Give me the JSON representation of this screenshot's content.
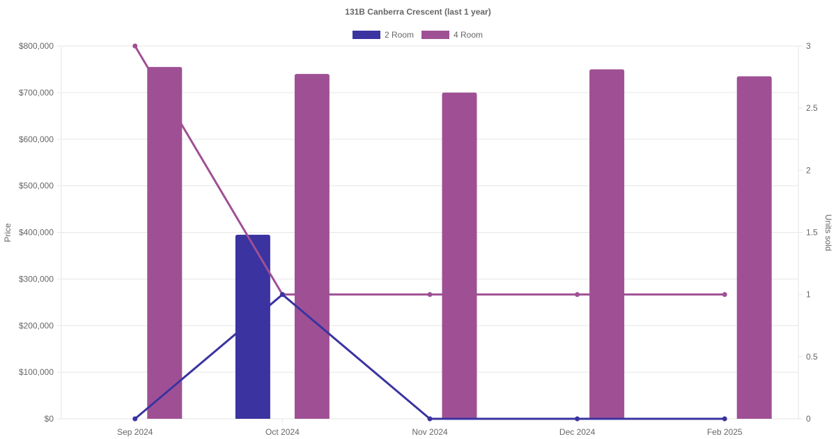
{
  "chart_data": {
    "type": "bar",
    "title": "131B Canberra Crescent (last 1 year)",
    "categories": [
      "Sep 2024",
      "Oct 2024",
      "Nov 2024",
      "Dec 2024",
      "Feb 2025"
    ],
    "ylabel": "Price",
    "y2label": "Units sold",
    "ylim": [
      0,
      800000
    ],
    "y2lim": [
      0,
      3
    ],
    "y_ticks": [
      "$0",
      "$100,000",
      "$200,000",
      "$300,000",
      "$400,000",
      "$500,000",
      "$600,000",
      "$700,000",
      "$800,000"
    ],
    "y2_ticks": [
      "0",
      "0.5",
      "1",
      "1.5",
      "2",
      "2.5",
      "3"
    ],
    "grid": true,
    "legend_position": "top-center",
    "series": [
      {
        "name": "2 Room",
        "color": "#3a33a0",
        "price_values": [
          null,
          395000,
          null,
          null,
          null
        ],
        "units_sold": [
          0,
          1,
          0,
          0,
          0
        ]
      },
      {
        "name": "4 Room",
        "color": "#9f5094",
        "price_values": [
          755000,
          740000,
          700000,
          750000,
          735000
        ],
        "units_sold": [
          3,
          1,
          1,
          1,
          1
        ]
      }
    ]
  }
}
